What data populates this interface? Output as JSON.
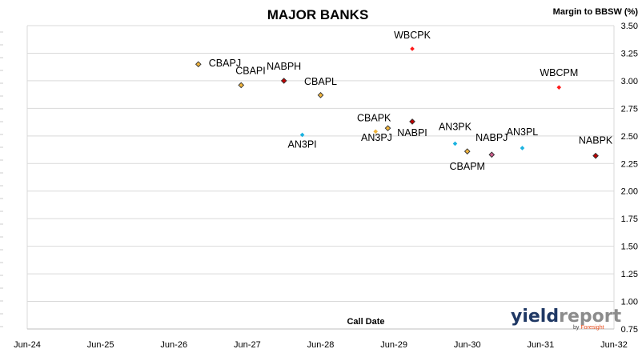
{
  "chart_data": {
    "type": "scatter",
    "title": "MAJOR BANKS",
    "ylabel": "Margin to BBSW (%)",
    "xlabel": "Call Date",
    "x_ticks": [
      "Jun-24",
      "Jun-25",
      "Jun-26",
      "Jun-27",
      "Jun-28",
      "Jun-29",
      "Jun-30",
      "Jun-31",
      "Jun-32"
    ],
    "x_tick_dates": [
      "2024-06",
      "2025-06",
      "2026-06",
      "2027-06",
      "2028-06",
      "2029-06",
      "2030-06",
      "2031-06",
      "2032-06"
    ],
    "xlim": [
      "2024-06",
      "2032-06"
    ],
    "y_ticks": [
      "0.75",
      "1.00",
      "1.25",
      "1.50",
      "1.75",
      "2.00",
      "2.25",
      "2.50",
      "2.75",
      "3.00",
      "3.25",
      "3.50"
    ],
    "ylim": [
      0.75,
      3.5
    ],
    "grid": "horizontal",
    "colors": {
      "CBA": "#f0b43c",
      "NAB": "#c00000",
      "ANZ": "#1ab2e0",
      "WBC": "#ff1a1a",
      "NABPJ": "#cc5d8c",
      "marker_edge": "#333333"
    },
    "points": [
      {
        "label": "CBAPJ",
        "x": "2026-10",
        "y": 3.15,
        "bank": "CBA",
        "outlined": true
      },
      {
        "label": "CBAPI",
        "x": "2027-05",
        "y": 2.96,
        "bank": "CBA",
        "outlined": true
      },
      {
        "label": "NABPH",
        "x": "2027-12",
        "y": 3.0,
        "bank": "NAB",
        "outlined": true
      },
      {
        "label": "CBAPL",
        "x": "2028-06",
        "y": 2.87,
        "bank": "CBA",
        "outlined": true
      },
      {
        "label": "WBCPK",
        "x": "2029-09",
        "y": 3.29,
        "bank": "WBC",
        "outlined": false
      },
      {
        "label": "WBCPM",
        "x": "2031-09",
        "y": 2.94,
        "bank": "WBC",
        "outlined": false
      },
      {
        "label": "AN3PI",
        "x": "2028-03",
        "y": 2.51,
        "bank": "ANZ",
        "outlined": false
      },
      {
        "label": "CBAPK",
        "x": "2029-03",
        "y": 2.54,
        "bank": "CBA",
        "outlined": false
      },
      {
        "label": "AN3PJ",
        "x": "2029-05",
        "y": 2.57,
        "bank": "CBA",
        "outlined": true
      },
      {
        "label": "NABPI",
        "x": "2029-09",
        "y": 2.63,
        "bank": "NAB",
        "outlined": true
      },
      {
        "label": "AN3PK",
        "x": "2030-04",
        "y": 2.43,
        "bank": "ANZ",
        "outlined": false
      },
      {
        "label": "CBAPM",
        "x": "2030-06",
        "y": 2.36,
        "bank": "CBA",
        "outlined": true
      },
      {
        "label": "NABPJ",
        "x": "2030-10",
        "y": 2.33,
        "bank": "NABPJ",
        "outlined": true
      },
      {
        "label": "AN3PL",
        "x": "2031-03",
        "y": 2.39,
        "bank": "ANZ",
        "outlined": false
      },
      {
        "label": "NABPK",
        "x": "2032-03",
        "y": 2.32,
        "bank": "NAB",
        "outlined": true
      }
    ]
  },
  "branding": {
    "logo_yield": "yield",
    "logo_report": "report",
    "logo_by": "by",
    "logo_foresight": "Foresight",
    "logo_color_yield": "#1f3864",
    "logo_color_report": "#8c8c8c",
    "logo_color_accent": "#e84c1c"
  }
}
